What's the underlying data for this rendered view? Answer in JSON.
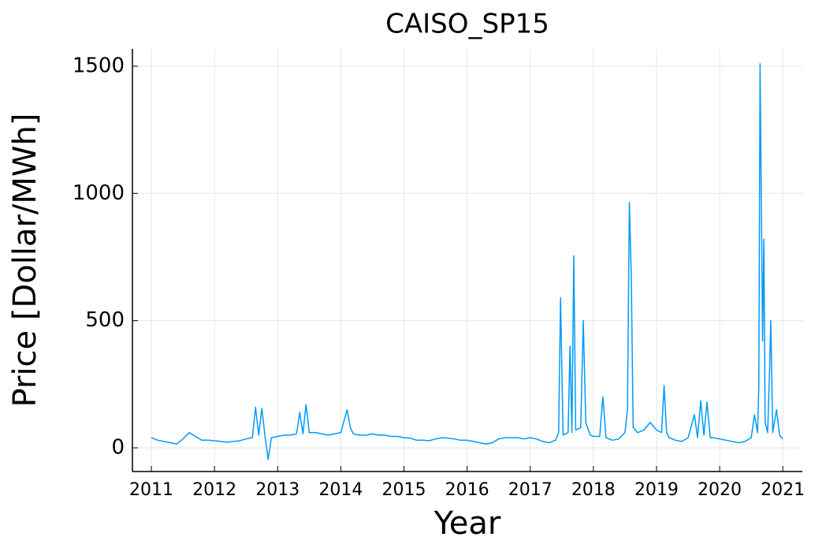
{
  "chart_data": {
    "type": "line",
    "title": "CAISO_SP15",
    "xlabel": "Year",
    "ylabel": "Price [Dollar/MWh]",
    "x": [
      2011.0,
      2011.1,
      2011.2,
      2011.3,
      2011.4,
      2011.5,
      2011.6,
      2011.7,
      2011.8,
      2011.9,
      2012.0,
      2012.1,
      2012.2,
      2012.3,
      2012.4,
      2012.5,
      2012.6,
      2012.65,
      2012.7,
      2012.75,
      2012.8,
      2012.85,
      2012.9,
      2013.0,
      2013.1,
      2013.2,
      2013.3,
      2013.35,
      2013.4,
      2013.45,
      2013.5,
      2013.6,
      2013.7,
      2013.8,
      2013.9,
      2014.0,
      2014.1,
      2014.15,
      2014.2,
      2014.3,
      2014.4,
      2014.5,
      2014.6,
      2014.7,
      2014.8,
      2014.9,
      2015.0,
      2015.1,
      2015.2,
      2015.3,
      2015.4,
      2015.5,
      2015.6,
      2015.7,
      2015.8,
      2015.9,
      2016.0,
      2016.1,
      2016.2,
      2016.3,
      2016.4,
      2016.5,
      2016.6,
      2016.7,
      2016.8,
      2016.9,
      2017.0,
      2017.1,
      2017.2,
      2017.3,
      2017.4,
      2017.45,
      2017.48,
      2017.52,
      2017.6,
      2017.63,
      2017.66,
      2017.69,
      2017.72,
      2017.8,
      2017.84,
      2017.88,
      2017.95,
      2018.0,
      2018.1,
      2018.15,
      2018.2,
      2018.3,
      2018.4,
      2018.5,
      2018.54,
      2018.57,
      2018.6,
      2018.63,
      2018.7,
      2018.8,
      2018.9,
      2019.0,
      2019.08,
      2019.12,
      2019.16,
      2019.2,
      2019.3,
      2019.4,
      2019.5,
      2019.6,
      2019.65,
      2019.7,
      2019.75,
      2019.8,
      2019.85,
      2019.9,
      2020.0,
      2020.1,
      2020.2,
      2020.3,
      2020.4,
      2020.5,
      2020.55,
      2020.6,
      2020.62,
      2020.64,
      2020.66,
      2020.68,
      2020.7,
      2020.72,
      2020.76,
      2020.79,
      2020.81,
      2020.84,
      2020.9,
      2020.95,
      2021.0
    ],
    "series": [
      {
        "name": "CAISO_SP15",
        "color": "#009af9",
        "values": [
          40,
          30,
          25,
          20,
          15,
          35,
          60,
          45,
          30,
          30,
          28,
          25,
          22,
          25,
          28,
          35,
          40,
          160,
          50,
          155,
          45,
          -45,
          40,
          45,
          50,
          50,
          55,
          140,
          55,
          170,
          60,
          60,
          55,
          50,
          55,
          60,
          150,
          80,
          55,
          50,
          50,
          55,
          50,
          50,
          45,
          45,
          40,
          38,
          30,
          30,
          28,
          35,
          40,
          38,
          35,
          30,
          30,
          25,
          20,
          15,
          20,
          35,
          40,
          40,
          40,
          35,
          40,
          35,
          25,
          20,
          30,
          60,
          590,
          50,
          60,
          400,
          60,
          755,
          70,
          80,
          500,
          100,
          50,
          45,
          45,
          200,
          40,
          30,
          35,
          60,
          150,
          965,
          680,
          80,
          60,
          70,
          100,
          70,
          60,
          245,
          60,
          40,
          30,
          25,
          40,
          130,
          40,
          185,
          50,
          180,
          40,
          40,
          35,
          30,
          25,
          20,
          25,
          40,
          130,
          60,
          240,
          1510,
          970,
          420,
          820,
          100,
          60,
          300,
          500,
          60,
          150,
          50,
          35
        ]
      }
    ],
    "xlim": [
      2010.7,
      2021.31
    ],
    "xticks": [
      2011,
      2012,
      2013,
      2014,
      2015,
      2016,
      2017,
      2018,
      2019,
      2020,
      2021
    ],
    "ylim": [
      -93,
      1568
    ],
    "yticks": [
      0,
      500,
      1000,
      1500
    ],
    "grid": true
  }
}
